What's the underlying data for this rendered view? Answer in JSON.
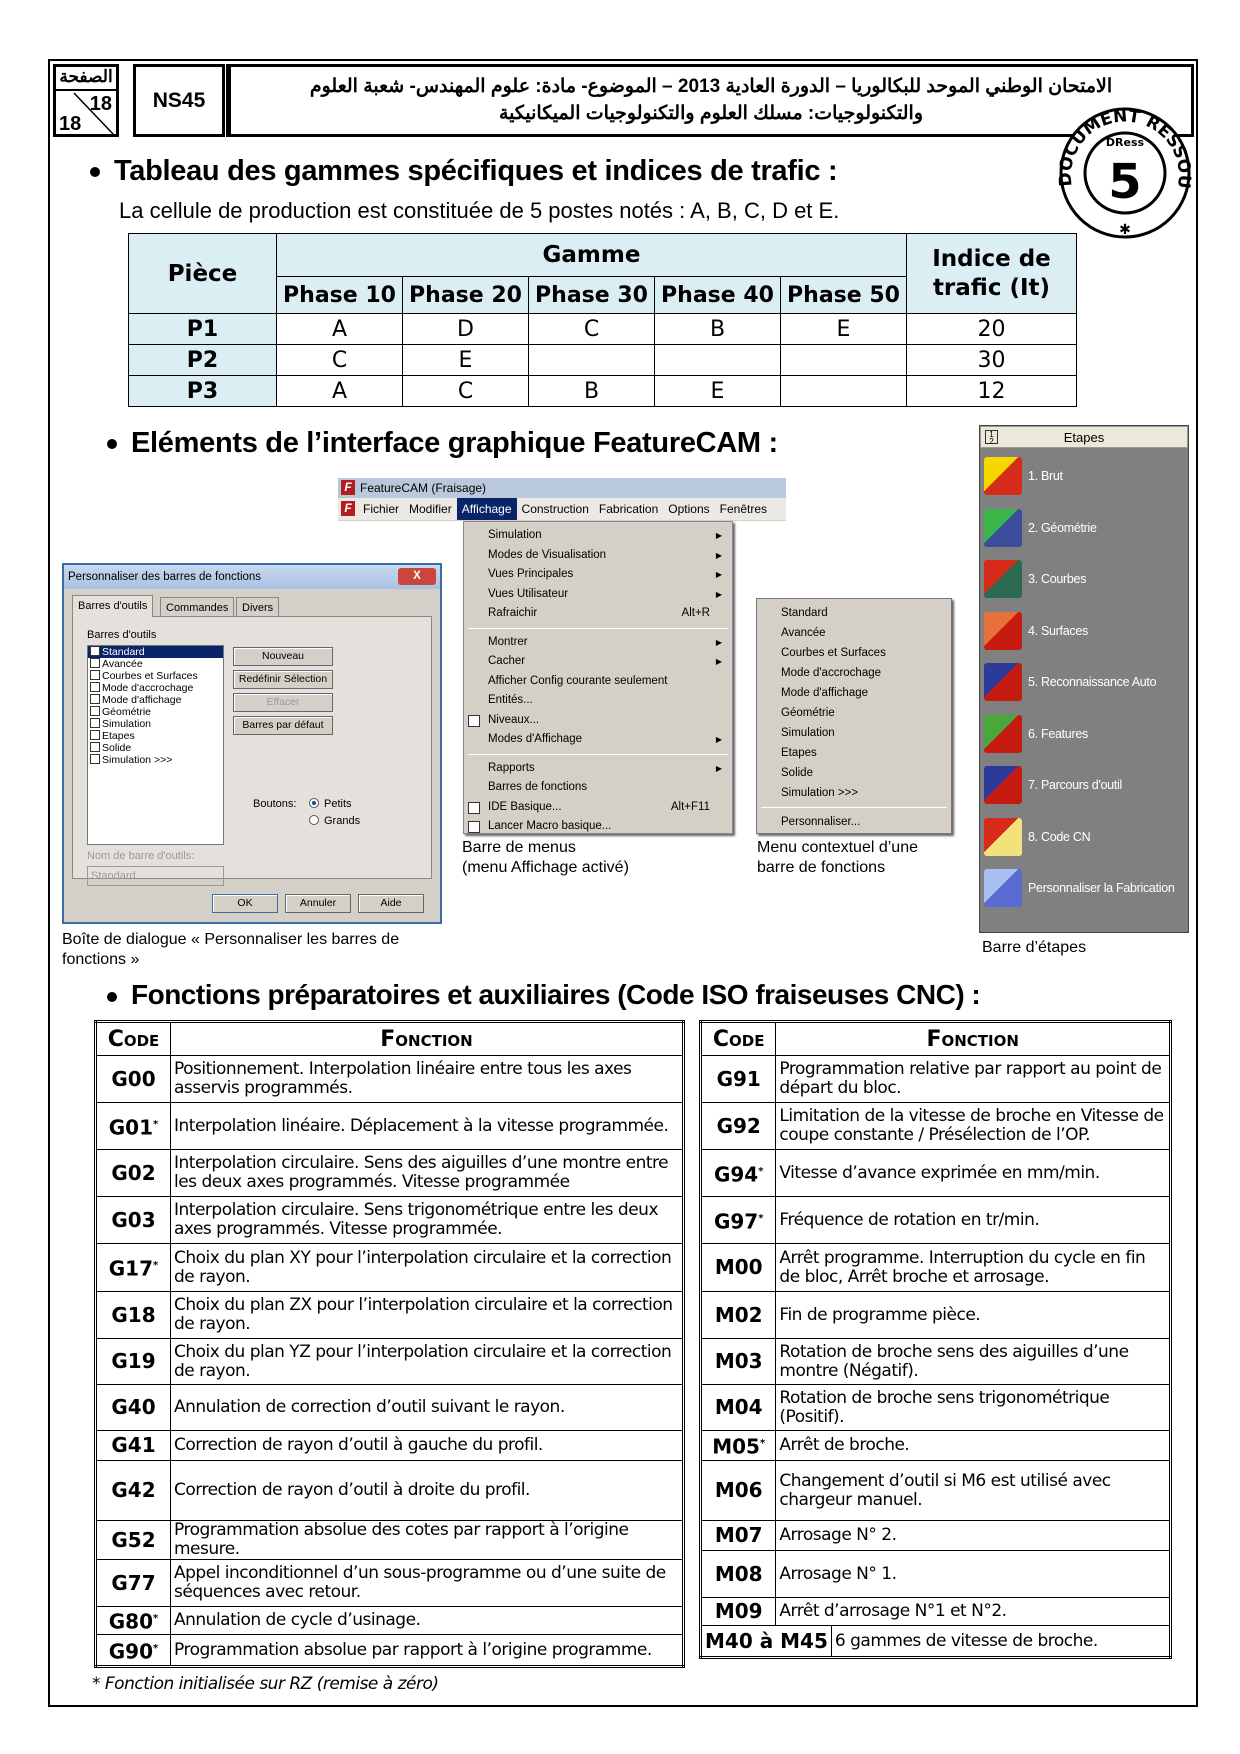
{
  "header": {
    "page_label": "الصفحة",
    "page_current": "18",
    "page_total": "18",
    "code": "NS45",
    "line1": "الامتحان الوطني الموحد للبكالوريا – الدورة العادية 2013 – الموضوع- مادة: علوم المهندس- شعبة العلوم",
    "line2": "والتكنولوجيات: مسلك العلوم والتكنولوجيات الميكانيكية",
    "stamp": "DOCUMENT RESSOURCES DRess 5"
  },
  "section1": {
    "title": "Tableau des gammes spécifiques et indices de trafic :",
    "subtitle": "La cellule de production est constituée de 5 postes notés : A, B, C, D et E.",
    "table": {
      "col_piece": "Pièce",
      "col_gamme": "Gamme",
      "col_indice": "Indice de trafic (It)",
      "phases": [
        "Phase 10",
        "Phase 20",
        "Phase 30",
        "Phase 40",
        "Phase 50"
      ],
      "rows": [
        {
          "piece": "P1",
          "phases": [
            "A",
            "D",
            "C",
            "B",
            "E"
          ],
          "it": "20"
        },
        {
          "piece": "P2",
          "phases": [
            "C",
            "E",
            "",
            "",
            ""
          ],
          "it": "30"
        },
        {
          "piece": "P3",
          "phases": [
            "A",
            "C",
            "B",
            "E",
            ""
          ],
          "it": "12"
        }
      ]
    }
  },
  "section2": {
    "title": "Eléments de l’interface graphique FeatureCAM :",
    "menubar": {
      "window_title": "FeatureCAM (Fraisage)",
      "menus": [
        "Fichier",
        "Modifier",
        "Affichage",
        "Construction",
        "Fabrication",
        "Options",
        "Fenêtres"
      ],
      "active_menu": "Affichage",
      "items": [
        {
          "label": "Simulation",
          "arrow": true
        },
        {
          "label": "Modes de Visualisation",
          "arrow": true
        },
        {
          "label": "Vues Principales",
          "arrow": true
        },
        {
          "label": "Vues Utilisateur",
          "arrow": true
        },
        {
          "label": "Rafraichir",
          "shortcut": "Alt+R"
        },
        {
          "sep": true
        },
        {
          "label": "Montrer",
          "arrow": true
        },
        {
          "label": "Cacher",
          "arrow": true
        },
        {
          "label": "Afficher Config courante seulement"
        },
        {
          "label": "Entités..."
        },
        {
          "label": "Niveaux...",
          "icon": "layers-icon"
        },
        {
          "label": "Modes d'Affichage",
          "arrow": true
        },
        {
          "sep": true
        },
        {
          "label": "Rapports",
          "arrow": true
        },
        {
          "label": "Barres de fonctions"
        },
        {
          "label": "IDE Basique...",
          "shortcut": "Alt+F11",
          "icon": "macro-editor-icon"
        },
        {
          "label": "Lancer Macro basique...",
          "icon": "run-macro-icon"
        }
      ],
      "caption": [
        "Barre de menus",
        "(menu Affichage activé)"
      ]
    },
    "context_menu": {
      "items": [
        "Standard",
        "Avancée",
        "Courbes et Surfaces",
        "Mode d'accrochage",
        "Mode d'affichage",
        "Géométrie",
        "Simulation",
        "Etapes",
        "Solide",
        "Simulation >>>"
      ],
      "last": "Personnaliser...",
      "caption": [
        "Menu contextuel d’une",
        "barre de fonctions"
      ]
    },
    "dialog": {
      "title": "Personnaliser des barres de fonctions",
      "tabs": [
        "Barres d'outils",
        "Commandes",
        "Divers"
      ],
      "list_label": "Barres d'outils",
      "list": [
        "Standard",
        "Avancée",
        "Courbes et Surfaces",
        "Mode d'accrochage",
        "Mode d'affichage",
        "Géométrie",
        "Simulation",
        "Etapes",
        "Solide",
        "Simulation >>>"
      ],
      "buttons": [
        "Nouveau",
        "Redéfinir Sélection",
        "Effacer",
        "Barres par défaut"
      ],
      "buttons_label": "Boutons:",
      "radio": [
        "Petits",
        "Grands"
      ],
      "radio_selected": "Petits",
      "name_label": "Nom de barre d'outils:",
      "name_value": "Standard",
      "footer": [
        "OK",
        "Annuler",
        "Aide"
      ],
      "caption": [
        "Boîte de dialogue « Personnaliser les barres de",
        "fonctions »"
      ]
    },
    "etapes": {
      "title": "Etapes",
      "steps": [
        {
          "label": "1.  Brut",
          "colors": [
            "#d62a1a",
            "#f5d800"
          ]
        },
        {
          "label": "2.  Géométrie",
          "colors": [
            "#3a4c9a",
            "#3ab54a"
          ]
        },
        {
          "label": "3.  Courbes",
          "colors": [
            "#2c6b50",
            "#d62a1a"
          ]
        },
        {
          "label": "4.  Surfaces",
          "colors": [
            "#c41a10",
            "#e8703a"
          ]
        },
        {
          "label": "5.  Reconnaissance Auto",
          "colors": [
            "#c41a10",
            "#2c3a9a"
          ]
        },
        {
          "label": "6.  Features",
          "colors": [
            "#c41a10",
            "#48a838"
          ]
        },
        {
          "label": "7.  Parcours d'outil",
          "colors": [
            "#c41a10",
            "#2c3a9a"
          ]
        },
        {
          "label": "8.  Code CN",
          "colors": [
            "#f2e27a",
            "#d62a1a"
          ]
        },
        {
          "label": "Personnaliser la Fabrication",
          "colors": [
            "#5a6bd0",
            "#a8c0f0"
          ]
        }
      ],
      "caption": "Barre d’étapes"
    }
  },
  "section3": {
    "title": "Fonctions préparatoires et auxiliaires (Code ISO fraiseuses CNC) :",
    "col_code": "Code",
    "col_fonction": "Fonction",
    "left": [
      {
        "code": "G00",
        "star": false,
        "text": "Positionnement. Interpolation linéaire entre tous les axes asservis programmés."
      },
      {
        "code": "G01",
        "star": true,
        "text": "Interpolation linéaire. Déplacement à la vitesse programmée."
      },
      {
        "code": "G02",
        "star": false,
        "text": "Interpolation circulaire. Sens des aiguilles d’une montre entre les deux axes programmés. Vitesse programmée"
      },
      {
        "code": "G03",
        "star": false,
        "text": "Interpolation circulaire. Sens trigonométrique entre les deux axes programmés. Vitesse programmée."
      },
      {
        "code": "G17",
        "star": true,
        "text": "Choix du plan XY pour l’interpolation circulaire et la correction de rayon."
      },
      {
        "code": "G18",
        "star": false,
        "text": "Choix du plan ZX pour l’interpolation circulaire et la correction de rayon."
      },
      {
        "code": "G19",
        "star": false,
        "text": "Choix du plan YZ pour l’interpolation circulaire et la correction de rayon."
      },
      {
        "code": "G40",
        "star": false,
        "text": "Annulation de correction d’outil suivant le rayon."
      },
      {
        "code": "G41",
        "star": false,
        "text": "Correction de rayon d’outil à gauche du profil."
      },
      {
        "code": "G42",
        "star": false,
        "text": "Correction de rayon d’outil à droite du profil."
      },
      {
        "code": "G52",
        "star": false,
        "text": "Programmation absolue des cotes par rapport à l’origine mesure."
      },
      {
        "code": "G77",
        "star": false,
        "text": "Appel inconditionnel d’un sous-programme ou d’une suite de séquences avec retour."
      },
      {
        "code": "G80",
        "star": true,
        "text": "Annulation de cycle d’usinage."
      },
      {
        "code": "G90",
        "star": true,
        "text": "Programmation absolue par rapport à l’origine programme."
      }
    ],
    "right": [
      {
        "code": "G91",
        "star": false,
        "text": "Programmation relative par rapport au point de départ du bloc."
      },
      {
        "code": "G92",
        "star": false,
        "text": "Limitation de la vitesse de broche en Vitesse de coupe constante / Présélection de l’OP."
      },
      {
        "code": "G94",
        "star": true,
        "text": "Vitesse d’avance exprimée en mm/min."
      },
      {
        "code": "G97",
        "star": true,
        "text": "Fréquence de rotation en tr/min."
      },
      {
        "code": "M00",
        "star": false,
        "text": "Arrêt programme. Interruption du cycle en fin de bloc, Arrêt broche et arrosage."
      },
      {
        "code": "M02",
        "star": false,
        "text": "Fin de programme pièce."
      },
      {
        "code": "M03",
        "star": false,
        "text": "Rotation de broche sens des aiguilles d’une montre (Négatif)."
      },
      {
        "code": "M04",
        "star": false,
        "text": "Rotation de broche sens trigonométrique (Positif)."
      },
      {
        "code": "M05",
        "star": true,
        "text": "Arrêt de broche."
      },
      {
        "code": "M06",
        "star": false,
        "text": "Changement d’outil si M6 est utilisé avec chargeur manuel."
      },
      {
        "code": "M07",
        "star": false,
        "text": "Arrosage N° 2."
      },
      {
        "code": "M08",
        "star": false,
        "text": "Arrosage N° 1."
      },
      {
        "code": "M09",
        "star": false,
        "text": "Arrêt d’arrosage N°1 et N°2."
      },
      {
        "code": "M40 à M45",
        "star": false,
        "text": "6 gammes de vitesse de broche.",
        "wide": true
      }
    ],
    "footnote": "* Fonction initialisée sur RZ (remise à zéro)"
  }
}
